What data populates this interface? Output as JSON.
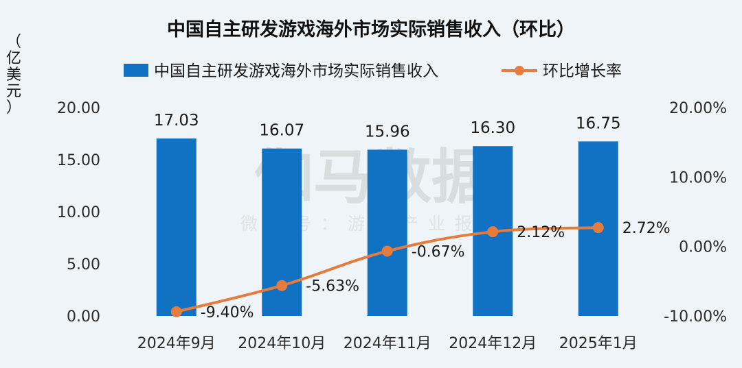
{
  "watermark": {
    "main": "伽马数据",
    "sub": "微信号：游戏产业报告"
  },
  "chart_data": {
    "type": "bar",
    "title": "中国自主研发游戏海外市场实际销售收入（环比）",
    "y_unit": "（亿美元）",
    "categories": [
      "2024年9月",
      "2024年10月",
      "2024年11月",
      "2024年12月",
      "2025年1月"
    ],
    "series": [
      {
        "name": "中国自主研发游戏海外市场实际销售收入",
        "kind": "bar",
        "axis": "left",
        "color": "#1172c3",
        "values": [
          17.03,
          16.07,
          15.96,
          16.3,
          16.75
        ],
        "labels": [
          "17.03",
          "16.07",
          "15.96",
          "16.30",
          "16.75"
        ]
      },
      {
        "name": "环比增长率",
        "kind": "line",
        "axis": "right",
        "color": "#e57b3c",
        "values": [
          -9.4,
          -5.63,
          -0.67,
          2.12,
          2.72
        ],
        "labels": [
          "-9.40%",
          "-5.63%",
          "-0.67%",
          "2.12%",
          "2.72%"
        ]
      }
    ],
    "y_left": {
      "ylim": [
        0,
        20
      ],
      "ticks": [
        "0.00",
        "5.00",
        "10.00",
        "15.00",
        "20.00"
      ]
    },
    "y_right": {
      "ylim": [
        -10,
        20
      ],
      "ticks": [
        "-10.00%",
        "0.00%",
        "10.00%",
        "20.00%"
      ]
    },
    "legend_position": "top"
  }
}
